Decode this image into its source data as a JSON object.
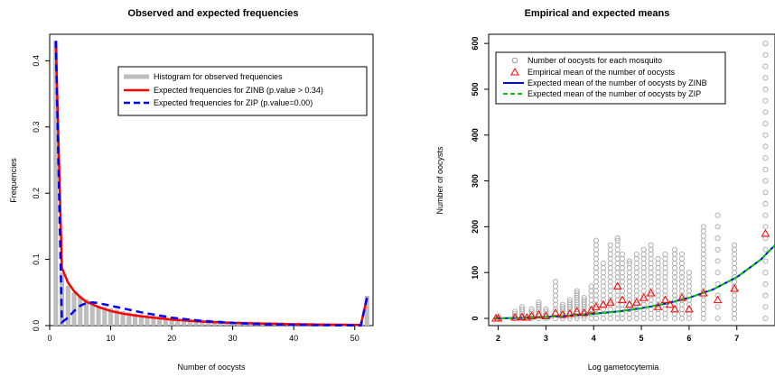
{
  "chart_data": [
    {
      "type": "bar",
      "title": "Observed and expected frequencies",
      "xlabel": "Number of oocysts",
      "ylabel": "Frequencies",
      "xlim": [
        0,
        53
      ],
      "ylim": [
        0,
        0.44
      ],
      "x_ticks": [
        "0",
        "10",
        "20",
        "30",
        "40",
        "50"
      ],
      "y_ticks": [
        "0.0",
        "0.1",
        "0.2",
        "0.3",
        "0.4"
      ],
      "legend": {
        "position": "top-right",
        "entries": [
          {
            "label": "Histogram for observed frequencies",
            "color": "#bebebe",
            "style": "thick"
          },
          {
            "label": "Expected frequencies for ZINB (p.value > 0.34)",
            "color": "#ff0000",
            "style": "solid"
          },
          {
            "label": "Expected frequencies for ZIP (p.value=0.00)",
            "color": "#0000ff",
            "style": "dashed"
          }
        ]
      },
      "histogram": {
        "x": [
          1,
          2,
          3,
          4,
          5,
          6,
          7,
          8,
          9,
          10,
          11,
          12,
          13,
          14,
          15,
          16,
          17,
          18,
          19,
          20,
          21,
          22,
          23,
          24,
          25,
          26,
          27,
          28,
          29,
          30,
          31,
          32,
          33,
          34,
          35,
          36,
          37,
          38,
          39,
          40,
          41,
          42,
          43,
          44,
          45,
          46,
          47,
          48,
          49,
          50,
          51,
          52
        ],
        "values": [
          0.43,
          0.08,
          0.06,
          0.05,
          0.045,
          0.04,
          0.035,
          0.03,
          0.028,
          0.026,
          0.024,
          0.022,
          0.02,
          0.018,
          0.017,
          0.016,
          0.015,
          0.014,
          0.013,
          0.012,
          0.011,
          0.011,
          0.01,
          0.01,
          0.009,
          0.009,
          0.008,
          0.008,
          0.007,
          0.007,
          0.007,
          0.006,
          0.006,
          0.006,
          0.005,
          0.005,
          0.005,
          0.005,
          0.004,
          0.004,
          0.004,
          0.004,
          0.004,
          0.003,
          0.003,
          0.003,
          0.003,
          0.003,
          0.003,
          0.003,
          0.003,
          0.045
        ]
      },
      "series": [
        {
          "color": "#ff0000",
          "style": "solid",
          "x": [
            1,
            2,
            3,
            4,
            5,
            6,
            8,
            10,
            12,
            15,
            20,
            25,
            30,
            35,
            40,
            45,
            50,
            51,
            52
          ],
          "y": [
            0.43,
            0.087,
            0.065,
            0.052,
            0.043,
            0.036,
            0.028,
            0.022,
            0.018,
            0.014,
            0.009,
            0.006,
            0.004,
            0.003,
            0.002,
            0.0015,
            0.001,
            0.001,
            0.042
          ]
        },
        {
          "color": "#0000ff",
          "style": "dashed",
          "x": [
            1,
            2,
            3,
            4,
            5,
            6,
            7,
            8,
            10,
            12,
            15,
            20,
            25,
            30,
            35,
            40,
            45,
            50,
            51,
            52
          ],
          "y": [
            0.43,
            0.005,
            0.012,
            0.022,
            0.03,
            0.034,
            0.035,
            0.034,
            0.03,
            0.026,
            0.02,
            0.012,
            0.007,
            0.004,
            0.002,
            0.001,
            0.0005,
            0.0002,
            0.0002,
            0.042
          ]
        }
      ]
    },
    {
      "type": "scatter",
      "title": "Empirical and expected means",
      "xlabel": "Log gametocytemia",
      "ylabel": "Number of oocysts",
      "xlim": [
        1.8,
        7.8
      ],
      "ylim": [
        0,
        620
      ],
      "x_ticks": [
        "2",
        "3",
        "4",
        "5",
        "6",
        "7"
      ],
      "y_ticks": [
        "0",
        "100",
        "200",
        "300",
        "400",
        "500",
        "600"
      ],
      "legend": {
        "position": "top-left",
        "entries": [
          {
            "label": "Number of oocysts for each mosquito",
            "color": "#999999",
            "marker": "circle"
          },
          {
            "label": "Empirical mean of the number of oocysts",
            "color": "#ff0000",
            "marker": "triangle"
          },
          {
            "label": "Expected mean of the number of oocysts by ZINB",
            "color": "#0000ff",
            "style": "solid"
          },
          {
            "label": "Expected mean of the number of oocysts by ZIP",
            "color": "#00cc00",
            "style": "dashed"
          }
        ]
      },
      "points_x": [
        2.0,
        2.35,
        2.5,
        2.7,
        2.85,
        3.0,
        3.2,
        3.35,
        3.5,
        3.65,
        3.8,
        3.95,
        4.05,
        4.2,
        4.35,
        4.5,
        4.6,
        4.75,
        4.9,
        5.05,
        5.2,
        5.35,
        5.5,
        5.7,
        5.85,
        6.0,
        6.3,
        6.6,
        6.95,
        7.6
      ],
      "points_max": [
        5,
        15,
        25,
        20,
        35,
        20,
        80,
        30,
        40,
        60,
        45,
        70,
        170,
        120,
        160,
        175,
        140,
        125,
        140,
        150,
        160,
        130,
        140,
        150,
        140,
        100,
        200,
        225,
        160,
        600
      ],
      "empirical_mean": {
        "x": [
          1.95,
          2.0,
          2.35,
          2.5,
          2.6,
          2.7,
          2.85,
          3.0,
          3.2,
          3.35,
          3.5,
          3.65,
          3.8,
          3.95,
          4.05,
          4.2,
          4.35,
          4.5,
          4.6,
          4.75,
          4.9,
          5.05,
          5.2,
          5.35,
          5.5,
          5.6,
          5.7,
          5.85,
          6.0,
          6.3,
          6.6,
          6.95,
          7.6
        ],
        "y": [
          0,
          0,
          2,
          3,
          2,
          5,
          8,
          5,
          12,
          8,
          10,
          15,
          12,
          18,
          25,
          30,
          35,
          70,
          40,
          30,
          35,
          45,
          55,
          25,
          40,
          30,
          20,
          45,
          20,
          55,
          40,
          65,
          185
        ]
      },
      "zinb_curve": {
        "x": [
          1.9,
          2.5,
          3.0,
          3.5,
          4.0,
          4.5,
          5.0,
          5.5,
          6.0,
          6.5,
          7.0,
          7.5,
          7.8
        ],
        "y": [
          0,
          1,
          3,
          6,
          10,
          15,
          22,
          32,
          45,
          63,
          90,
          128,
          160
        ]
      },
      "zip_curve": {
        "x": [
          1.9,
          2.5,
          3.0,
          3.5,
          4.0,
          4.5,
          5.0,
          5.5,
          6.0,
          6.5,
          7.0,
          7.5,
          7.8
        ],
        "y": [
          0,
          1,
          3,
          6,
          10,
          15,
          22,
          32,
          45,
          63,
          90,
          128,
          160
        ]
      }
    }
  ]
}
